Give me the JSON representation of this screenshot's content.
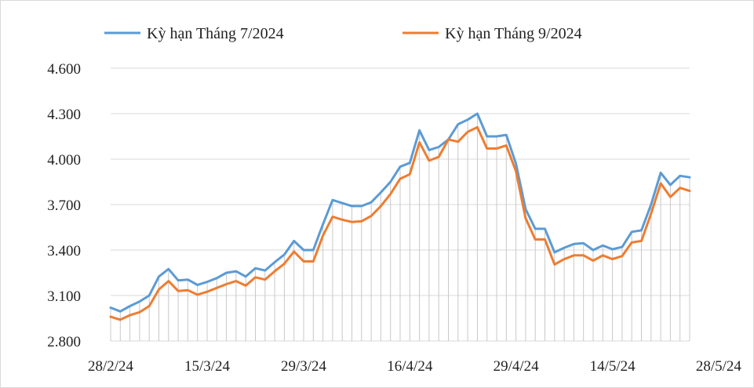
{
  "chart_data": {
    "type": "line",
    "ylim": [
      2800,
      4600
    ],
    "yticks": [
      "2.800",
      "3.100",
      "3.400",
      "3.700",
      "4.000",
      "4.300",
      "4.600"
    ],
    "ytick_values": [
      2800,
      3100,
      3400,
      3700,
      4000,
      4300,
      4600
    ],
    "xtick_labels": [
      "28/2/24",
      "15/3/24",
      "29/3/24",
      "16/4/24",
      "29/4/24",
      "14/5/24",
      "28/5/24"
    ],
    "xtick_index": [
      0,
      10,
      20,
      31,
      42,
      52,
      63
    ],
    "grid": "horizontal",
    "legend_position": "top",
    "series": [
      {
        "name": "Kỳ hạn Tháng 7/2024",
        "color": "#5b9bd5",
        "values": [
          3020,
          2995,
          3030,
          3060,
          3100,
          3225,
          3275,
          3200,
          3205,
          3170,
          3190,
          3215,
          3250,
          3260,
          3225,
          3280,
          3265,
          3320,
          3370,
          3460,
          3400,
          3400,
          3570,
          3730,
          3710,
          3690,
          3690,
          3715,
          3780,
          3850,
          3950,
          3975,
          4190,
          4060,
          4080,
          4130,
          4230,
          4260,
          4300,
          4150,
          4150,
          4160,
          3970,
          3670,
          3540,
          3540,
          3385,
          3415,
          3440,
          3445,
          3400,
          3430,
          3405,
          3420,
          3520,
          3530,
          3700,
          3910,
          3830,
          3890,
          3880
        ]
      },
      {
        "name": "Kỳ hạn Tháng 9/2024",
        "color": "#ed7d31",
        "values": [
          2960,
          2940,
          2970,
          2990,
          3030,
          3140,
          3195,
          3130,
          3135,
          3105,
          3125,
          3150,
          3175,
          3195,
          3165,
          3220,
          3205,
          3260,
          3310,
          3390,
          3325,
          3325,
          3495,
          3620,
          3600,
          3585,
          3590,
          3625,
          3690,
          3770,
          3870,
          3900,
          4110,
          3990,
          4015,
          4130,
          4115,
          4180,
          4210,
          4070,
          4070,
          4090,
          3920,
          3610,
          3470,
          3470,
          3305,
          3340,
          3365,
          3365,
          3330,
          3365,
          3340,
          3360,
          3450,
          3460,
          3640,
          3840,
          3750,
          3810,
          3790
        ]
      }
    ]
  }
}
